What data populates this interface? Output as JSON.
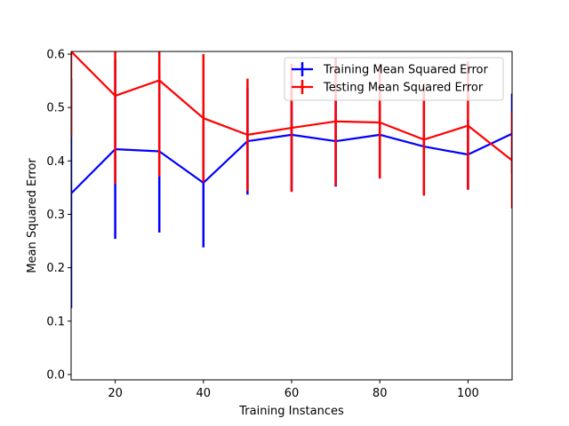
{
  "chart_data": {
    "type": "line",
    "title": "",
    "xlabel": "Training Instances",
    "ylabel": "Mean Squared Error",
    "xlim": [
      10,
      110
    ],
    "ylim": [
      -0.01,
      0.605
    ],
    "x_ticks": [
      20,
      40,
      60,
      80,
      100
    ],
    "y_ticks": [
      0.0,
      0.1,
      0.2,
      0.3,
      0.4,
      0.5,
      0.6
    ],
    "x_tick_labels": [
      "20",
      "40",
      "60",
      "80",
      "100"
    ],
    "y_tick_labels": [
      "0.0",
      "0.1",
      "0.2",
      "0.3",
      "0.4",
      "0.5",
      "0.6"
    ],
    "grid": false,
    "legend_position": "top-right",
    "x": [
      10,
      20,
      30,
      40,
      50,
      60,
      70,
      80,
      90,
      100,
      110
    ],
    "series": [
      {
        "name": "Training Mean Squared Error",
        "color": "#0000ff",
        "values": [
          0.339,
          0.422,
          0.418,
          0.359,
          0.437,
          0.449,
          0.437,
          0.449,
          0.427,
          0.412,
          0.451
        ],
        "errors": [
          0.215,
          0.168,
          0.152,
          0.121,
          0.1,
          0.105,
          0.085,
          0.08,
          0.09,
          0.065,
          0.075
        ]
      },
      {
        "name": "Testing Mean Squared Error",
        "color": "#ff0000",
        "values": [
          0.605,
          0.522,
          0.551,
          0.48,
          0.449,
          0.462,
          0.474,
          0.472,
          0.44,
          0.466,
          0.401
        ],
        "errors": [
          0.16,
          0.165,
          0.18,
          0.12,
          0.105,
          0.12,
          0.12,
          0.105,
          0.105,
          0.12,
          0.09
        ]
      }
    ]
  }
}
